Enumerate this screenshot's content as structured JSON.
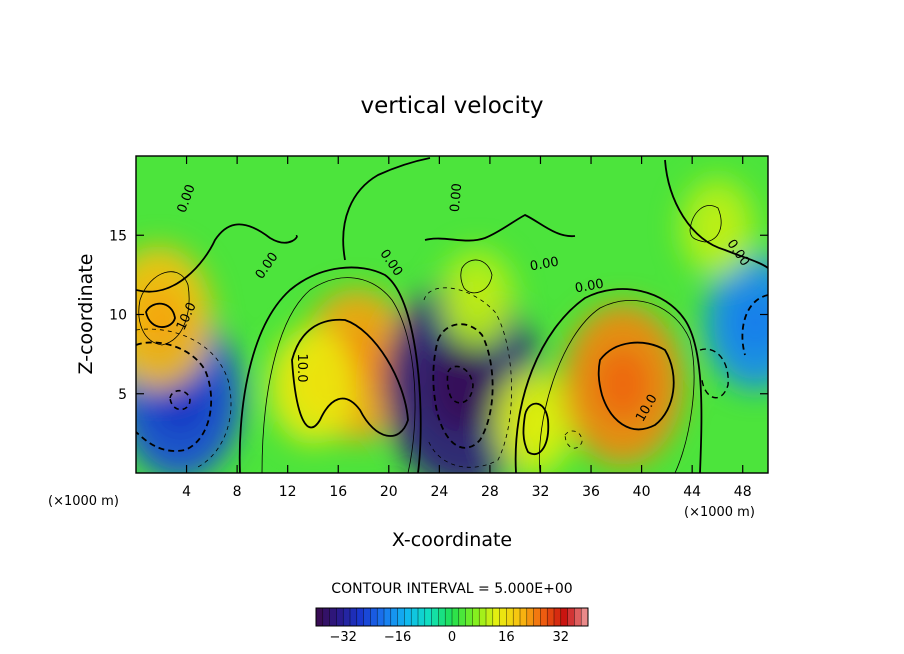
{
  "chart_data": {
    "type": "heatmap",
    "title": "vertical velocity",
    "xlabel": "X-coordinate",
    "ylabel": "Z-coordinate",
    "x_unit": "(×1000 m)",
    "z_unit": "(×1000 m)",
    "xlim": [
      0,
      50
    ],
    "ylim": [
      0,
      20
    ],
    "x_ticks": [
      4,
      8,
      12,
      16,
      20,
      24,
      28,
      32,
      36,
      40,
      44,
      48
    ],
    "y_ticks": [
      5,
      10,
      15
    ],
    "contour_interval_text": "CONTOUR INTERVAL = 5.000E+00",
    "colorbar": {
      "range": [
        -40,
        40
      ],
      "ticks": [
        -32,
        -16,
        0,
        16,
        32
      ],
      "colors": [
        "#3a0a4a",
        "#2a1a8a",
        "#1838d0",
        "#1a78f0",
        "#10b8f0",
        "#10e0c0",
        "#20e050",
        "#80f020",
        "#e8f010",
        "#f8c010",
        "#f06010",
        "#c81010",
        "#f0a0a0"
      ]
    },
    "contour_labels": [
      "0.00",
      "0.00",
      "0.00",
      "0.00",
      "0.00",
      "0.00",
      "0.00",
      "10.0",
      "10.0",
      "10.0"
    ],
    "features": [
      {
        "x": 3.5,
        "z": 4.8,
        "value": -25
      },
      {
        "x": 1.8,
        "z": 9.8,
        "value": 20
      },
      {
        "x": 17.5,
        "z": 6.8,
        "value": 22
      },
      {
        "x": 14.0,
        "z": 5.5,
        "value": 14
      },
      {
        "x": 25.8,
        "z": 5.5,
        "value": -35
      },
      {
        "x": 31.5,
        "z": 3.2,
        "value": 12
      },
      {
        "x": 38.5,
        "z": 5.6,
        "value": 24
      },
      {
        "x": 49.0,
        "z": 9.5,
        "value": -18
      },
      {
        "x": 46.0,
        "z": 15.5,
        "value": 10
      },
      {
        "x": 27.0,
        "z": 11.0,
        "value": 10
      }
    ]
  }
}
